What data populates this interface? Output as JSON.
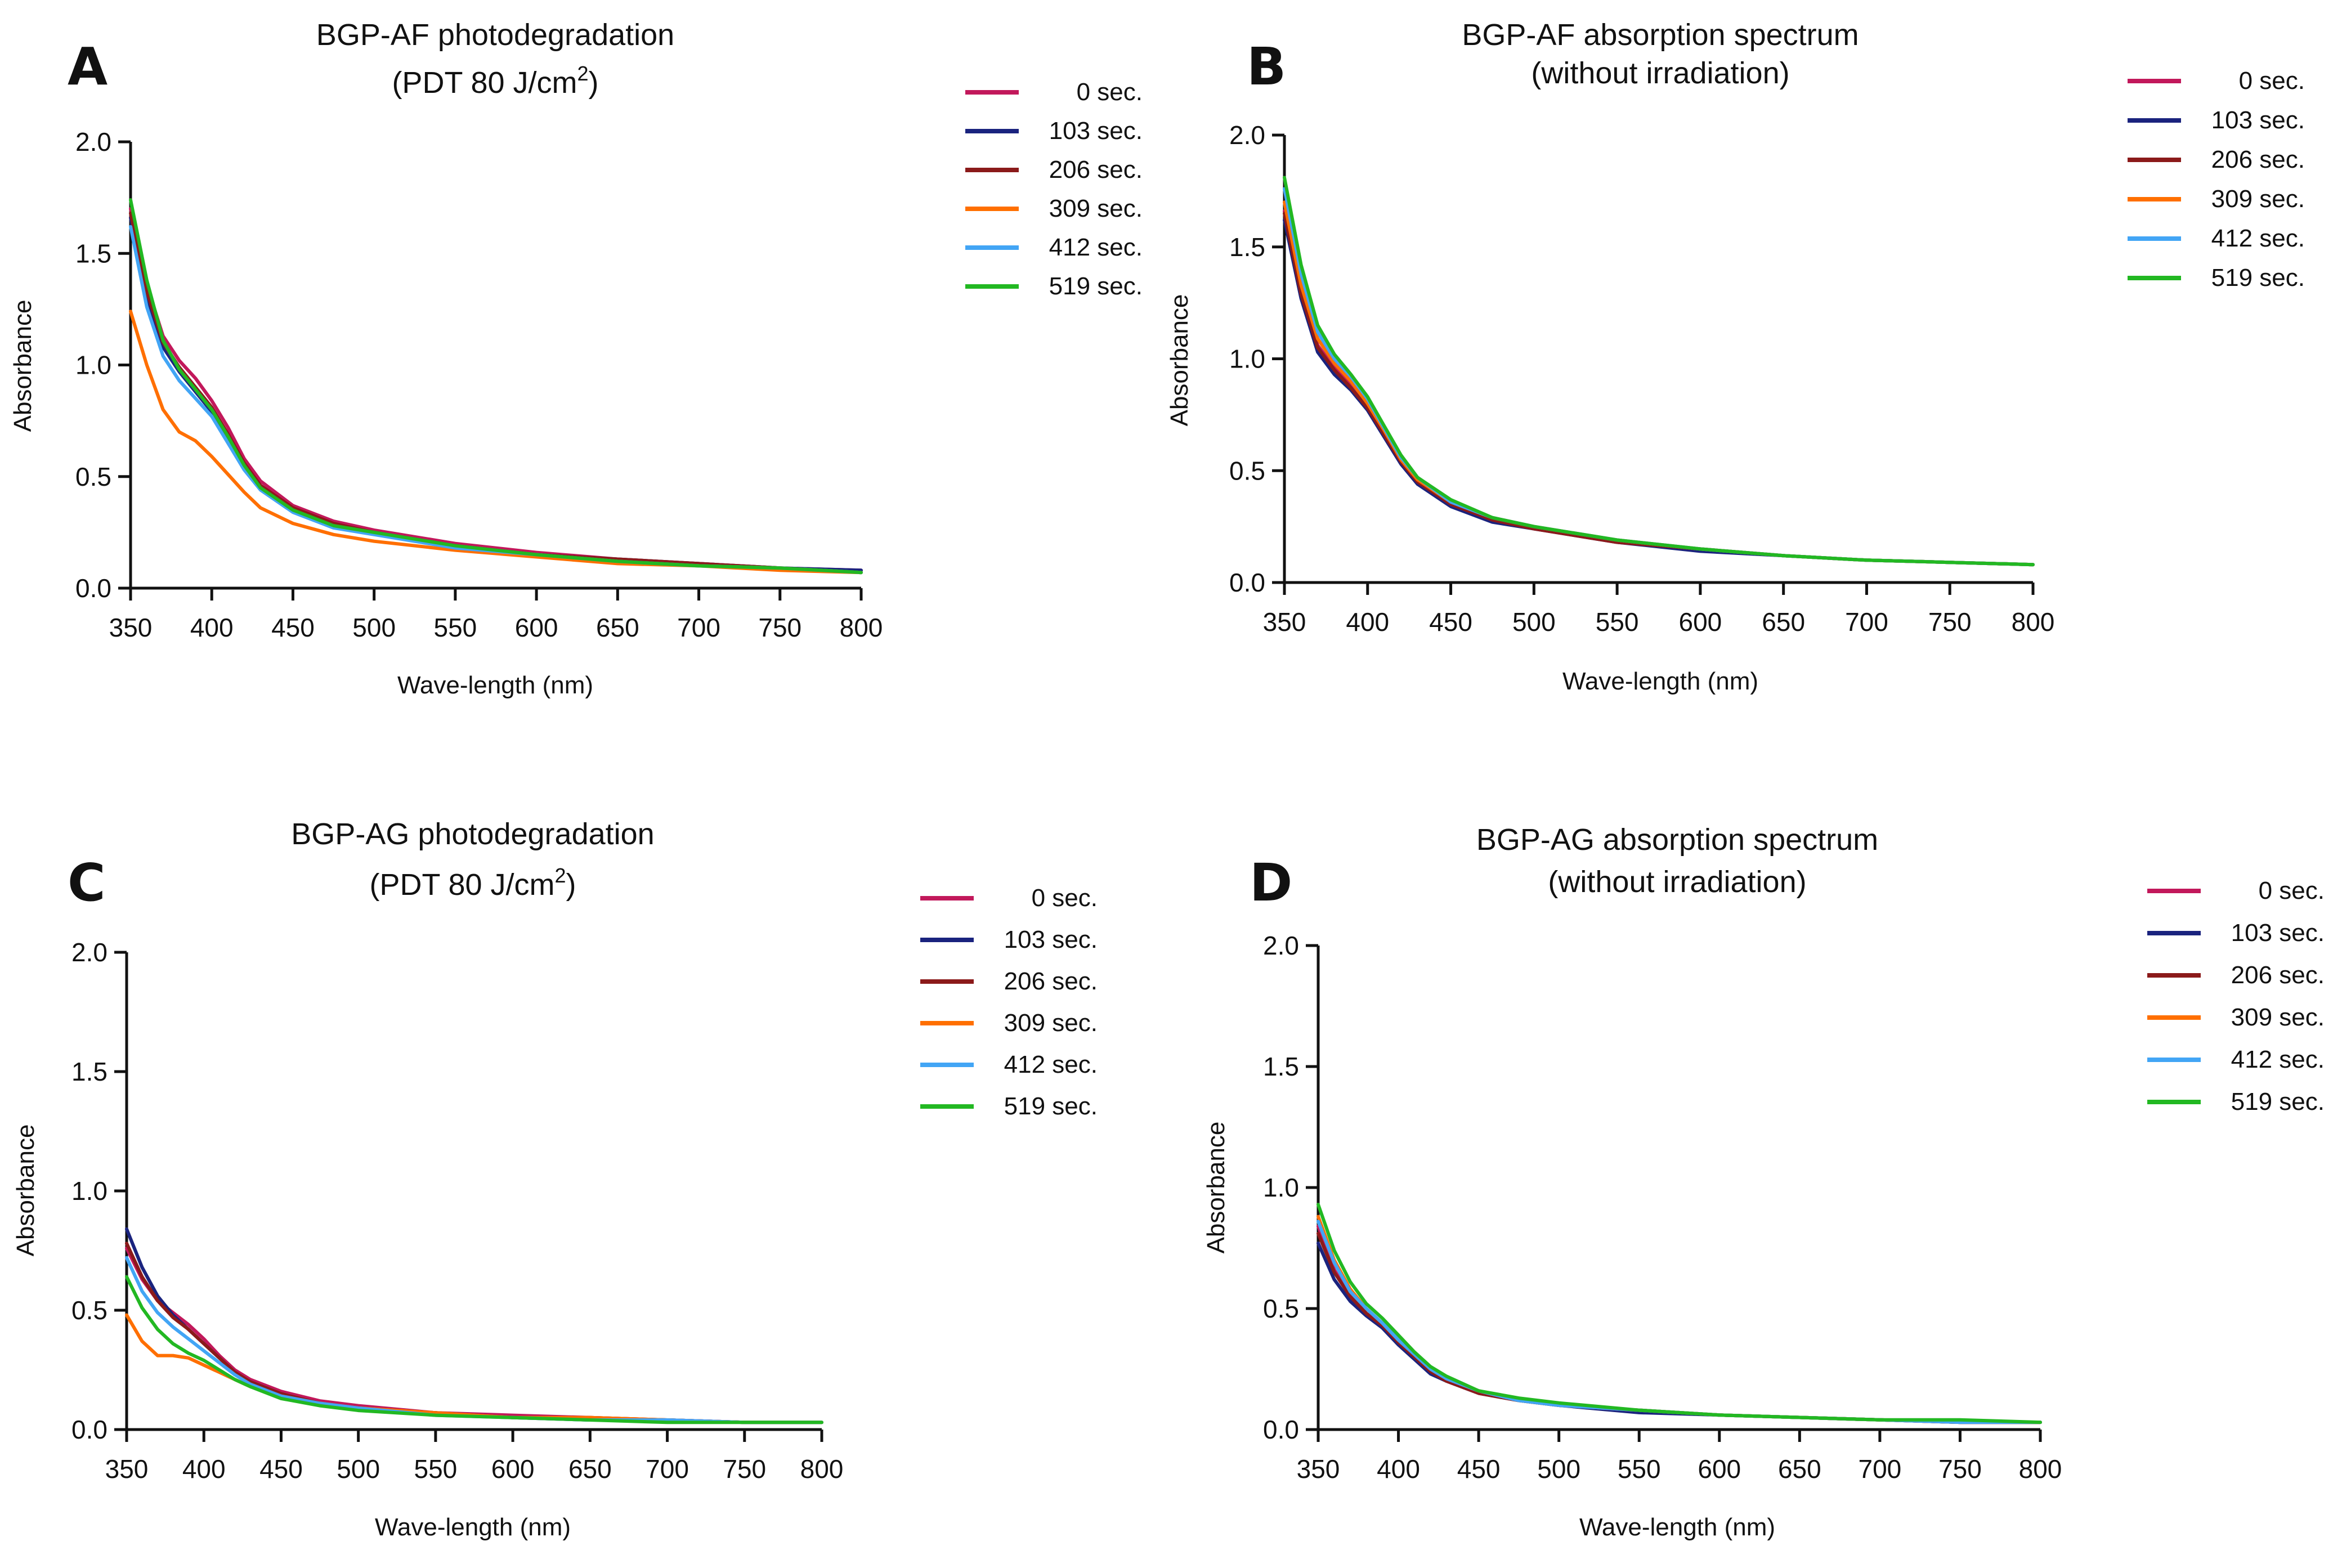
{
  "figure": {
    "panels": [
      "A",
      "B",
      "C",
      "D"
    ]
  },
  "series_colors": {
    "0 sec.": "#c2185b",
    "103 sec.": "#1a237e",
    "206 sec.": "#8b1a1a",
    "309 sec.": "#ff6f00",
    "412 sec.": "#42a5f5",
    "519 sec.": "#22b822"
  },
  "chart_data": [
    {
      "panel": "A",
      "type": "line",
      "title": "BGP-AF photodegradation",
      "subtitle": "(PDT 80 J/cm",
      "subtitle_sup": "2",
      "subtitle_end": ")",
      "xlabel": "Wave-length (nm)",
      "ylabel": "Absorbance",
      "xlim": [
        350,
        800
      ],
      "ylim": [
        0,
        2
      ],
      "xticks": [
        "350",
        "400",
        "450",
        "500",
        "550",
        "600",
        "650",
        "700",
        "750",
        "800"
      ],
      "yticks": [
        "0.0",
        "0.5",
        "1.0",
        "1.5",
        "2.0"
      ],
      "x": [
        350,
        360,
        370,
        380,
        390,
        400,
        410,
        420,
        430,
        450,
        475,
        500,
        550,
        600,
        650,
        700,
        750,
        800
      ],
      "series": [
        {
          "name": "0 sec.",
          "values": [
            1.7,
            1.36,
            1.13,
            1.02,
            0.94,
            0.84,
            0.72,
            0.58,
            0.48,
            0.37,
            0.3,
            0.26,
            0.2,
            0.16,
            0.13,
            0.11,
            0.09,
            0.08
          ]
        },
        {
          "name": "103 sec.",
          "values": [
            1.66,
            1.31,
            1.08,
            0.97,
            0.88,
            0.79,
            0.67,
            0.55,
            0.45,
            0.35,
            0.28,
            0.25,
            0.19,
            0.15,
            0.13,
            0.11,
            0.09,
            0.08
          ]
        },
        {
          "name": "206 sec.",
          "values": [
            1.68,
            1.33,
            1.1,
            0.99,
            0.9,
            0.81,
            0.69,
            0.56,
            0.46,
            0.36,
            0.29,
            0.25,
            0.19,
            0.15,
            0.13,
            0.11,
            0.09,
            0.07
          ]
        },
        {
          "name": "309 sec.",
          "values": [
            1.24,
            1.0,
            0.8,
            0.7,
            0.66,
            0.59,
            0.51,
            0.43,
            0.36,
            0.29,
            0.24,
            0.21,
            0.17,
            0.14,
            0.11,
            0.1,
            0.08,
            0.07
          ]
        },
        {
          "name": "412 sec.",
          "values": [
            1.62,
            1.26,
            1.04,
            0.93,
            0.85,
            0.77,
            0.65,
            0.53,
            0.44,
            0.34,
            0.27,
            0.24,
            0.18,
            0.15,
            0.12,
            0.1,
            0.09,
            0.07
          ]
        },
        {
          "name": "519 sec.",
          "values": [
            1.74,
            1.38,
            1.11,
            0.98,
            0.89,
            0.8,
            0.68,
            0.55,
            0.45,
            0.35,
            0.28,
            0.25,
            0.19,
            0.15,
            0.12,
            0.1,
            0.09,
            0.07
          ]
        }
      ]
    },
    {
      "panel": "B",
      "type": "line",
      "title": "BGP-AF absorption spectrum",
      "subtitle": "(without irradiation)",
      "subtitle_sup": "",
      "subtitle_end": "",
      "xlabel": "Wave-length (nm)",
      "ylabel": "Absorbance",
      "xlim": [
        350,
        800
      ],
      "ylim": [
        0,
        2
      ],
      "xticks": [
        "350",
        "400",
        "450",
        "500",
        "550",
        "600",
        "650",
        "700",
        "750",
        "800"
      ],
      "yticks": [
        "0.0",
        "0.5",
        "1.0",
        "1.5",
        "2.0"
      ],
      "x": [
        350,
        360,
        370,
        380,
        390,
        400,
        410,
        420,
        430,
        450,
        475,
        500,
        550,
        600,
        650,
        700,
        750,
        800
      ],
      "series": [
        {
          "name": "0 sec.",
          "values": [
            1.66,
            1.3,
            1.06,
            0.96,
            0.88,
            0.78,
            0.66,
            0.54,
            0.45,
            0.35,
            0.28,
            0.24,
            0.18,
            0.15,
            0.12,
            0.1,
            0.09,
            0.08
          ]
        },
        {
          "name": "103 sec.",
          "values": [
            1.62,
            1.27,
            1.03,
            0.93,
            0.86,
            0.77,
            0.65,
            0.53,
            0.44,
            0.34,
            0.27,
            0.24,
            0.18,
            0.14,
            0.12,
            0.1,
            0.09,
            0.08
          ]
        },
        {
          "name": "206 sec.",
          "values": [
            1.65,
            1.29,
            1.05,
            0.95,
            0.87,
            0.78,
            0.66,
            0.54,
            0.45,
            0.35,
            0.28,
            0.24,
            0.18,
            0.15,
            0.12,
            0.1,
            0.09,
            0.08
          ]
        },
        {
          "name": "309 sec.",
          "values": [
            1.7,
            1.33,
            1.09,
            0.98,
            0.9,
            0.8,
            0.68,
            0.55,
            0.46,
            0.36,
            0.29,
            0.25,
            0.19,
            0.15,
            0.12,
            0.1,
            0.09,
            0.08
          ]
        },
        {
          "name": "412 sec.",
          "values": [
            1.76,
            1.38,
            1.12,
            1.0,
            0.92,
            0.82,
            0.69,
            0.56,
            0.47,
            0.36,
            0.29,
            0.25,
            0.19,
            0.15,
            0.12,
            0.1,
            0.09,
            0.08
          ]
        },
        {
          "name": "519 sec.",
          "values": [
            1.81,
            1.42,
            1.15,
            1.02,
            0.93,
            0.83,
            0.7,
            0.57,
            0.47,
            0.37,
            0.29,
            0.25,
            0.19,
            0.15,
            0.12,
            0.1,
            0.09,
            0.08
          ]
        }
      ]
    },
    {
      "panel": "C",
      "type": "line",
      "title": "BGP-AG photodegradation",
      "subtitle": "(PDT 80 J/cm",
      "subtitle_sup": "2",
      "subtitle_end": ")",
      "xlabel": "Wave-length (nm)",
      "ylabel": "Absorbance",
      "xlim": [
        350,
        800
      ],
      "ylim": [
        0,
        2
      ],
      "xticks": [
        "350",
        "400",
        "450",
        "500",
        "550",
        "600",
        "650",
        "700",
        "750",
        "800"
      ],
      "yticks": [
        "0.0",
        "0.5",
        "1.0",
        "1.5",
        "2.0"
      ],
      "x": [
        350,
        360,
        370,
        380,
        390,
        400,
        410,
        420,
        430,
        450,
        475,
        500,
        550,
        600,
        650,
        700,
        750,
        800
      ],
      "series": [
        {
          "name": "0 sec.",
          "values": [
            0.76,
            0.63,
            0.54,
            0.49,
            0.44,
            0.38,
            0.31,
            0.25,
            0.21,
            0.16,
            0.12,
            0.1,
            0.07,
            0.06,
            0.05,
            0.04,
            0.03,
            0.03
          ]
        },
        {
          "name": "103 sec.",
          "values": [
            0.84,
            0.68,
            0.56,
            0.48,
            0.42,
            0.36,
            0.3,
            0.24,
            0.2,
            0.15,
            0.11,
            0.09,
            0.07,
            0.05,
            0.04,
            0.04,
            0.03,
            0.03
          ]
        },
        {
          "name": "206 sec.",
          "values": [
            0.78,
            0.64,
            0.54,
            0.47,
            0.42,
            0.36,
            0.3,
            0.24,
            0.2,
            0.15,
            0.11,
            0.09,
            0.07,
            0.05,
            0.05,
            0.04,
            0.03,
            0.03
          ]
        },
        {
          "name": "309 sec.",
          "values": [
            0.48,
            0.37,
            0.31,
            0.31,
            0.3,
            0.27,
            0.24,
            0.21,
            0.18,
            0.14,
            0.11,
            0.09,
            0.07,
            0.05,
            0.05,
            0.04,
            0.03,
            0.03
          ]
        },
        {
          "name": "412 sec.",
          "values": [
            0.72,
            0.58,
            0.49,
            0.43,
            0.38,
            0.33,
            0.28,
            0.23,
            0.19,
            0.14,
            0.11,
            0.09,
            0.06,
            0.05,
            0.04,
            0.04,
            0.03,
            0.03
          ]
        },
        {
          "name": "519 sec.",
          "values": [
            0.64,
            0.51,
            0.42,
            0.36,
            0.32,
            0.29,
            0.25,
            0.21,
            0.18,
            0.13,
            0.1,
            0.08,
            0.06,
            0.05,
            0.04,
            0.03,
            0.03,
            0.03
          ]
        }
      ]
    },
    {
      "panel": "D",
      "type": "line",
      "title": "BGP-AG absorption spectrum",
      "subtitle": "(without irradiation)",
      "subtitle_sup": "",
      "subtitle_end": "",
      "xlabel": "Wave-length (nm)",
      "ylabel": "Absorbance",
      "xlim": [
        350,
        800
      ],
      "ylim": [
        0,
        2
      ],
      "xticks": [
        "350",
        "400",
        "450",
        "500",
        "550",
        "600",
        "650",
        "700",
        "750",
        "800"
      ],
      "yticks": [
        "0.0",
        "0.5",
        "1.0",
        "1.5",
        "2.0"
      ],
      "x": [
        350,
        360,
        370,
        380,
        390,
        400,
        410,
        420,
        430,
        450,
        475,
        500,
        550,
        600,
        650,
        700,
        750,
        800
      ],
      "series": [
        {
          "name": "0 sec.",
          "values": [
            0.84,
            0.66,
            0.55,
            0.48,
            0.43,
            0.36,
            0.3,
            0.24,
            0.2,
            0.15,
            0.12,
            0.1,
            0.08,
            0.06,
            0.05,
            0.04,
            0.03,
            0.03
          ]
        },
        {
          "name": "103 sec.",
          "values": [
            0.77,
            0.62,
            0.53,
            0.47,
            0.42,
            0.35,
            0.29,
            0.23,
            0.2,
            0.15,
            0.12,
            0.1,
            0.07,
            0.06,
            0.05,
            0.04,
            0.03,
            0.03
          ]
        },
        {
          "name": "206 sec.",
          "values": [
            0.81,
            0.65,
            0.55,
            0.48,
            0.43,
            0.36,
            0.3,
            0.24,
            0.2,
            0.15,
            0.12,
            0.1,
            0.08,
            0.06,
            0.05,
            0.04,
            0.03,
            0.03
          ]
        },
        {
          "name": "309 sec.",
          "values": [
            0.88,
            0.7,
            0.58,
            0.5,
            0.44,
            0.37,
            0.31,
            0.25,
            0.21,
            0.16,
            0.12,
            0.1,
            0.08,
            0.06,
            0.05,
            0.04,
            0.03,
            0.03
          ]
        },
        {
          "name": "412 sec.",
          "values": [
            0.86,
            0.69,
            0.57,
            0.5,
            0.44,
            0.37,
            0.31,
            0.25,
            0.21,
            0.16,
            0.12,
            0.1,
            0.08,
            0.06,
            0.05,
            0.04,
            0.03,
            0.03
          ]
        },
        {
          "name": "519 sec.",
          "values": [
            0.93,
            0.74,
            0.61,
            0.52,
            0.46,
            0.39,
            0.32,
            0.26,
            0.22,
            0.16,
            0.13,
            0.11,
            0.08,
            0.06,
            0.05,
            0.04,
            0.04,
            0.03
          ]
        }
      ]
    }
  ]
}
